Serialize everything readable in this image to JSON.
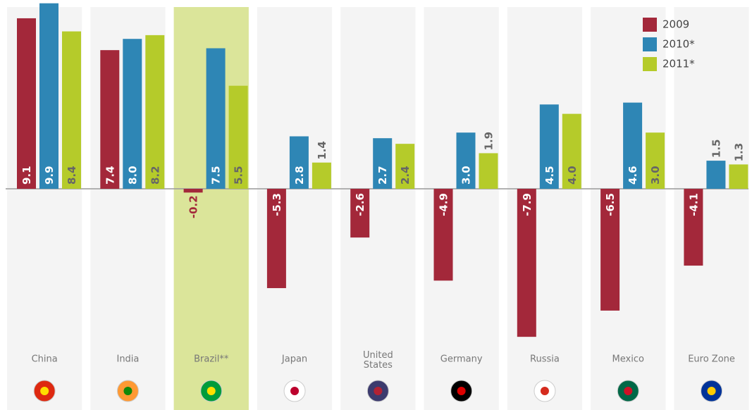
{
  "chart_data": {
    "type": "bar",
    "categories": [
      "China",
      "India",
      "Brazil**",
      "Japan",
      "United States",
      "Germany",
      "Russia",
      "Mexico",
      "Euro Zone"
    ],
    "series": [
      {
        "name": "2009",
        "color": "#a3283a",
        "values": [
          9.1,
          7.4,
          -0.2,
          -5.3,
          -2.6,
          -4.9,
          -7.9,
          -6.5,
          -4.1
        ],
        "value_labels": [
          "9.1",
          "7.4",
          "-0.2",
          "-5.3",
          "-2.6",
          "-4.9",
          "-7.9",
          "-6.5",
          "-4.1"
        ]
      },
      {
        "name": "2010*",
        "color": "#2e86b5",
        "values": [
          9.9,
          8.0,
          7.5,
          2.8,
          2.7,
          3.0,
          4.5,
          4.6,
          1.5
        ],
        "value_labels": [
          "9.9",
          "8.0",
          "7.5",
          "2.8",
          "2.7",
          "3.0",
          "4.5",
          "4.6",
          "1.5"
        ]
      },
      {
        "name": "2011*",
        "color": "#b5cb2a",
        "values": [
          8.4,
          8.2,
          5.5,
          1.4,
          2.4,
          1.9,
          4.0,
          3.0,
          1.3
        ],
        "value_labels": [
          "8.4",
          "8.2",
          "5.5",
          "1.4",
          "2.4",
          "1.9",
          "4.0",
          "3.0",
          "1.3"
        ]
      }
    ],
    "legend": "top-right"
  }
}
